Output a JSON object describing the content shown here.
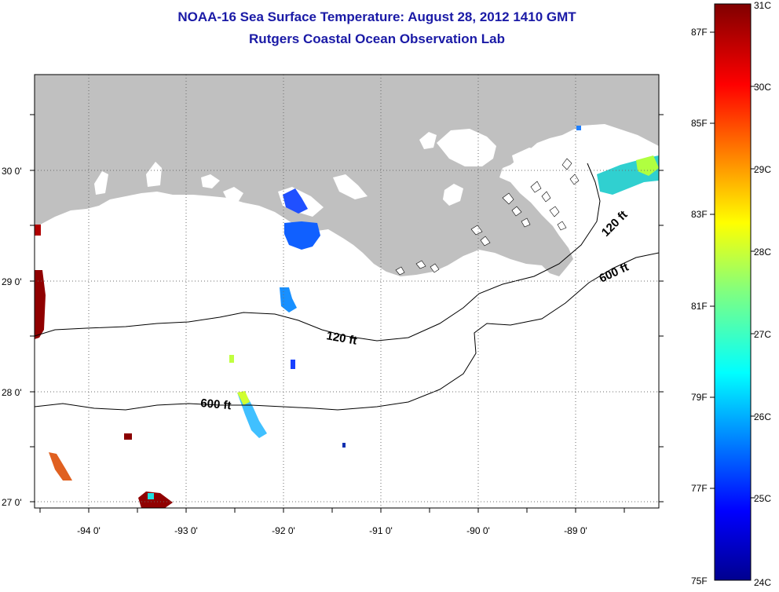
{
  "title": {
    "line1": "NOAA-16 Sea Surface Temperature:  August 28, 2012 1410 GMT",
    "line2": "Rutgers Coastal Ocean Observation Lab"
  },
  "map": {
    "lat_labels": [
      "30 0'",
      "29 0'",
      "28 0'",
      "27 0'"
    ],
    "lon_labels": [
      "-94 0'",
      "-93 0'",
      "-92 0'",
      "-91 0'",
      "-90 0'",
      "-89 0'"
    ],
    "lat_values": [
      30,
      29,
      28,
      27
    ],
    "lon_values": [
      -94,
      -93,
      -92,
      -91,
      -90,
      -89
    ],
    "isobath_labels": {
      "shelf_120_west": "120 ft",
      "shelf_600_west": "600 ft",
      "shelf_120_east": "120 ft",
      "shelf_600_east": "600 ft"
    },
    "colors": {
      "land": "#c0c0c0",
      "water": "#ffffff",
      "grid": "#6d6d6d",
      "isobath": "#000000",
      "title": "#1a1aa6"
    }
  },
  "colorbar": {
    "celsius": [
      "31C",
      "30C",
      "29C",
      "28C",
      "27C",
      "26C",
      "25C",
      "24C"
    ],
    "fahrenheit": [
      "87F",
      "85F",
      "83F",
      "81F",
      "79F",
      "77F",
      "75F"
    ],
    "min_c": 24,
    "max_c": 31,
    "colormap": "jet"
  }
}
